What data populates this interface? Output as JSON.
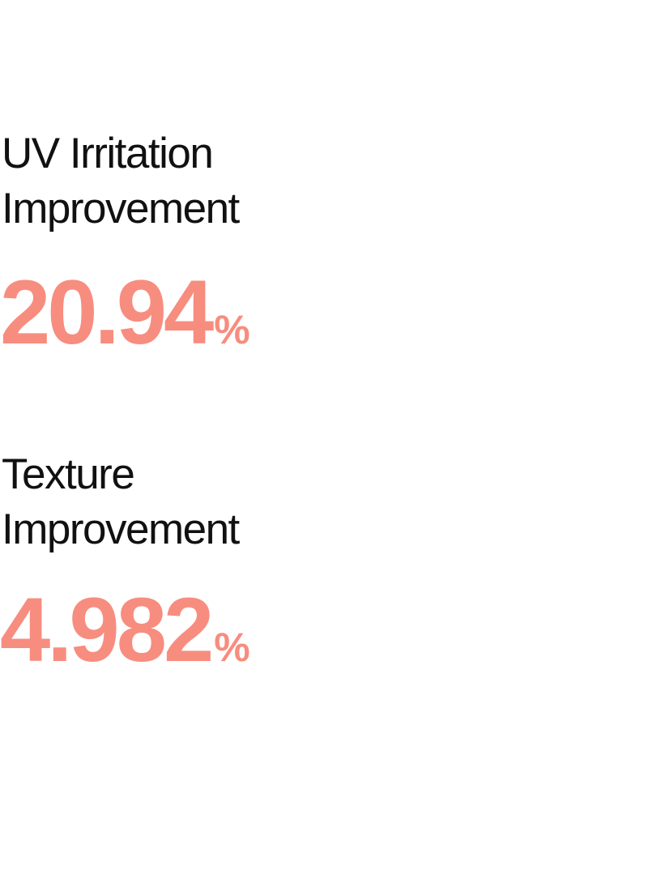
{
  "metrics": [
    {
      "label_line1": "UV Irritation",
      "label_line2": "Improvement",
      "value": "20.94",
      "unit": "%"
    },
    {
      "label_line1": "Texture",
      "label_line2": "Improvement",
      "value": "4.982",
      "unit": "%"
    }
  ],
  "colors": {
    "accent": "#f78d7f",
    "text": "#111111"
  },
  "icon": "up-arrow-icon"
}
